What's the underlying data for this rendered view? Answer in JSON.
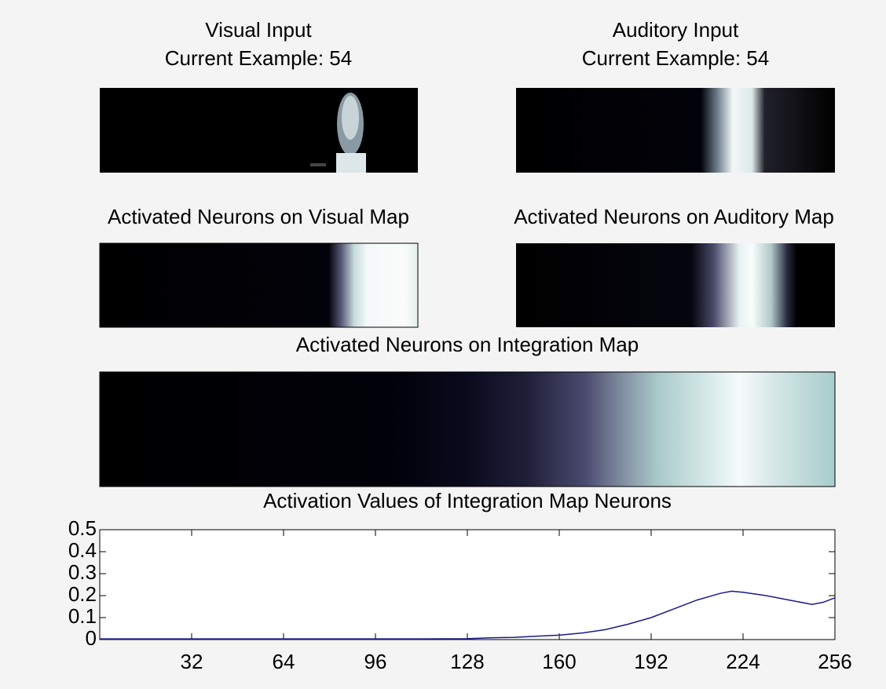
{
  "panels": {
    "visual_input": {
      "title": "Visual Input",
      "subtitle": "Current Example: 54"
    },
    "auditory_input": {
      "title": "Auditory Input",
      "subtitle": "Current Example: 54"
    },
    "visual_map": {
      "title": "Activated Neurons on Visual Map"
    },
    "auditory_map": {
      "title": "Activated Neurons on Auditory Map"
    },
    "integration_map": {
      "title": "Activated Neurons on Integration Map"
    }
  },
  "chart_data": {
    "type": "line",
    "title": "Activation Values of Integration Map Neurons",
    "x": [
      0,
      16,
      32,
      48,
      64,
      80,
      96,
      112,
      128,
      136,
      144,
      152,
      160,
      168,
      176,
      184,
      192,
      200,
      208,
      216,
      220,
      224,
      232,
      240,
      248,
      252,
      256
    ],
    "series": [
      {
        "color": "#1a1a8c",
        "values": [
          0.003,
          0.003,
          0.003,
          0.003,
          0.003,
          0.003,
          0.003,
          0.003,
          0.004,
          0.008,
          0.01,
          0.015,
          0.02,
          0.03,
          0.045,
          0.07,
          0.1,
          0.14,
          0.18,
          0.21,
          0.22,
          0.215,
          0.2,
          0.18,
          0.16,
          0.17,
          0.19
        ]
      }
    ],
    "xlim": [
      0,
      256
    ],
    "xticks": [
      32,
      64,
      96,
      128,
      160,
      192,
      224,
      256
    ],
    "ylim": [
      0,
      0.5
    ],
    "yticks": [
      0,
      0.1,
      0.2,
      0.3,
      0.4,
      0.5
    ]
  }
}
